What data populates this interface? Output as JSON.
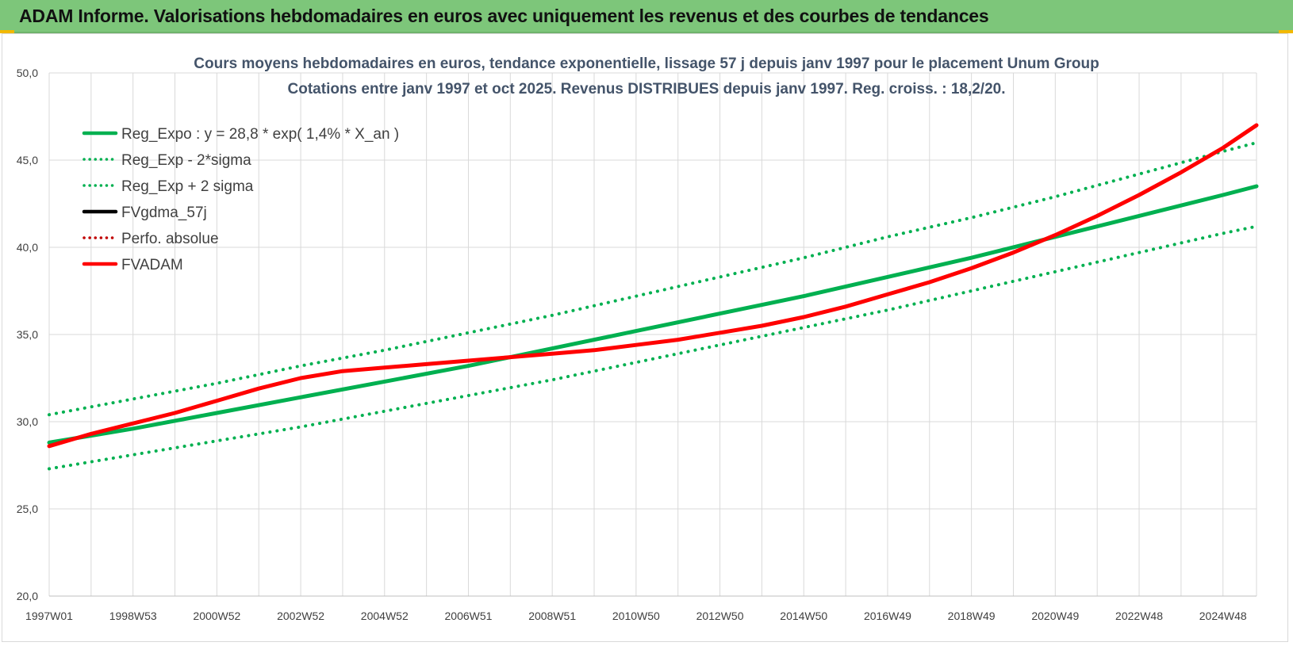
{
  "header": {
    "title": "ADAM Informe. Valorisations hebdomadaires en euros avec uniquement les revenus et des courbes de tendances"
  },
  "colors": {
    "header_bg": "#7dc67a",
    "green": "#00b050",
    "red": "#ff0000",
    "black": "#000000",
    "grid": "#d9d9d9"
  },
  "chart_data": {
    "type": "line",
    "title_lines": [
      "Cours moyens hebdomadaires en euros, tendance exponentielle, lissage 57 j depuis janv 1997 pour le placement Unum Group",
      "Cotations entre janv 1997 et oct 2025. Revenus DISTRIBUES depuis janv 1997.  Reg. croiss. : 18,2/20."
    ],
    "xlabel": "",
    "ylabel": "",
    "ylim": [
      20,
      50
    ],
    "xlim": [
      1997.0,
      2025.8
    ],
    "y_ticks": [
      "20,0",
      "25,0",
      "30,0",
      "35,0",
      "40,0",
      "45,0",
      "50,0"
    ],
    "x_ticks": [
      {
        "label": "1997W01",
        "x": 1997.0
      },
      {
        "label": "1998W53",
        "x": 1999.0
      },
      {
        "label": "2000W52",
        "x": 2001.0
      },
      {
        "label": "2002W52",
        "x": 2003.0
      },
      {
        "label": "2004W52",
        "x": 2005.0
      },
      {
        "label": "2006W51",
        "x": 2007.0
      },
      {
        "label": "2008W51",
        "x": 2009.0
      },
      {
        "label": "2010W50",
        "x": 2011.0
      },
      {
        "label": "2012W50",
        "x": 2013.0
      },
      {
        "label": "2014W50",
        "x": 2015.0
      },
      {
        "label": "2016W49",
        "x": 2017.0
      },
      {
        "label": "2018W49",
        "x": 2019.0
      },
      {
        "label": "2020W49",
        "x": 2021.0
      },
      {
        "label": "2022W48",
        "x": 2023.0
      },
      {
        "label": "2024W48",
        "x": 2025.0
      }
    ],
    "grid": true,
    "legend_position": "top-left",
    "series": [
      {
        "name": "Reg_Expo : y = 28,8 * exp( 1,4% *  X_an )",
        "style": "solid-thick",
        "color": "#00b050",
        "x": [
          1997,
          1999,
          2001,
          2003,
          2005,
          2007,
          2009,
          2011,
          2013,
          2015,
          2017,
          2019,
          2021,
          2023,
          2025,
          2025.8
        ],
        "values": [
          28.8,
          29.6,
          30.5,
          31.4,
          32.3,
          33.2,
          34.2,
          35.2,
          36.2,
          37.2,
          38.3,
          39.4,
          40.6,
          41.8,
          43.0,
          43.5
        ]
      },
      {
        "name": "Reg_Exp - 2*sigma",
        "style": "dotted",
        "color": "#00b050",
        "x": [
          1997,
          1999,
          2001,
          2003,
          2005,
          2007,
          2009,
          2011,
          2013,
          2015,
          2017,
          2019,
          2021,
          2023,
          2025,
          2025.8
        ],
        "values": [
          27.3,
          28.1,
          28.9,
          29.7,
          30.6,
          31.5,
          32.4,
          33.4,
          34.4,
          35.4,
          36.4,
          37.5,
          38.6,
          39.7,
          40.8,
          41.2
        ]
      },
      {
        "name": "Reg_Exp + 2 sigma",
        "style": "dotted",
        "color": "#00b050",
        "x": [
          1997,
          1999,
          2001,
          2003,
          2005,
          2007,
          2009,
          2011,
          2013,
          2015,
          2017,
          2019,
          2021,
          2023,
          2025,
          2025.8
        ],
        "values": [
          30.4,
          31.3,
          32.2,
          33.2,
          34.1,
          35.1,
          36.1,
          37.2,
          38.3,
          39.4,
          40.6,
          41.7,
          42.9,
          44.2,
          45.5,
          46.0
        ]
      },
      {
        "name": "FVgdma_57j",
        "style": "solid-thick",
        "color": "#000000",
        "x": [],
        "values": []
      },
      {
        "name": "Perfo. absolue",
        "style": "dotted",
        "color": "#c00000",
        "x": [],
        "values": []
      },
      {
        "name": "FVADAM",
        "style": "solid-thick",
        "color": "#ff0000",
        "x": [
          1997.0,
          1998.0,
          1999.0,
          2000.0,
          2001.0,
          2002.0,
          2003.0,
          2004.0,
          2005.0,
          2006.0,
          2007.0,
          2008.0,
          2009.0,
          2010.0,
          2011.0,
          2012.0,
          2013.0,
          2014.0,
          2015.0,
          2016.0,
          2017.0,
          2018.0,
          2019.0,
          2020.0,
          2021.0,
          2022.0,
          2023.0,
          2024.0,
          2025.0,
          2025.8
        ],
        "values": [
          28.6,
          29.3,
          29.9,
          30.5,
          31.2,
          31.9,
          32.5,
          32.9,
          33.1,
          33.3,
          33.5,
          33.7,
          33.9,
          34.1,
          34.4,
          34.7,
          35.1,
          35.5,
          36.0,
          36.6,
          37.3,
          38.0,
          38.8,
          39.7,
          40.7,
          41.8,
          43.0,
          44.3,
          45.7,
          47.0
        ]
      }
    ]
  }
}
